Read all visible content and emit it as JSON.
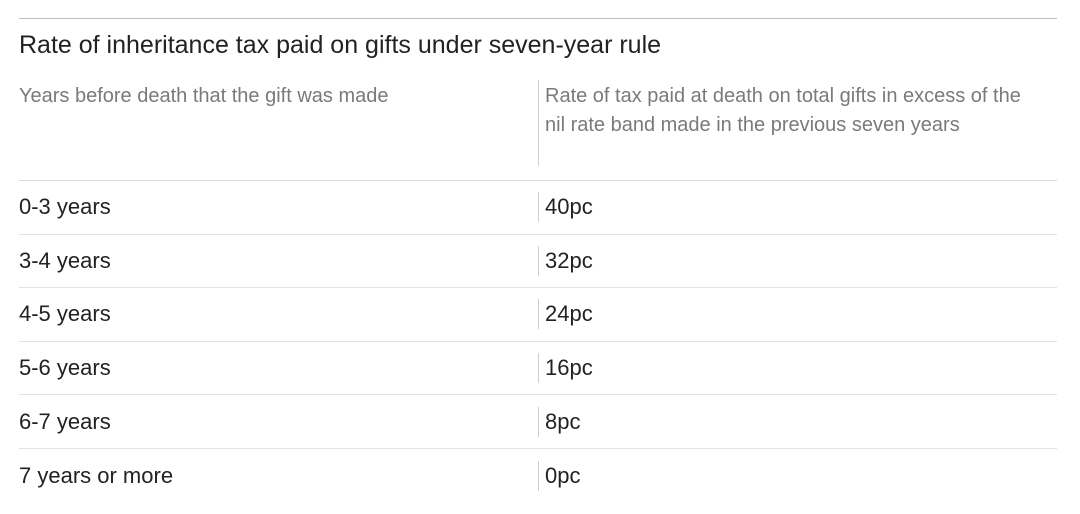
{
  "chart_data": {
    "type": "table",
    "title": "Rate of inheritance tax paid on gifts under seven-year rule",
    "columns": [
      "Years before death that the gift was made",
      "Rate of tax paid at death on total gifts in excess of the nil rate band made in the previous seven years"
    ],
    "rows": [
      {
        "period": "0-3 years",
        "rate": "40pc"
      },
      {
        "period": "3-4 years",
        "rate": "32pc"
      },
      {
        "period": "4-5 years",
        "rate": "24pc"
      },
      {
        "period": "5-6 years",
        "rate": "16pc"
      },
      {
        "period": "6-7 years",
        "rate": "8pc"
      },
      {
        "period": "7 years or more",
        "rate": "0pc"
      }
    ],
    "rate_values_percent": [
      40,
      32,
      24,
      16,
      8,
      0
    ]
  }
}
